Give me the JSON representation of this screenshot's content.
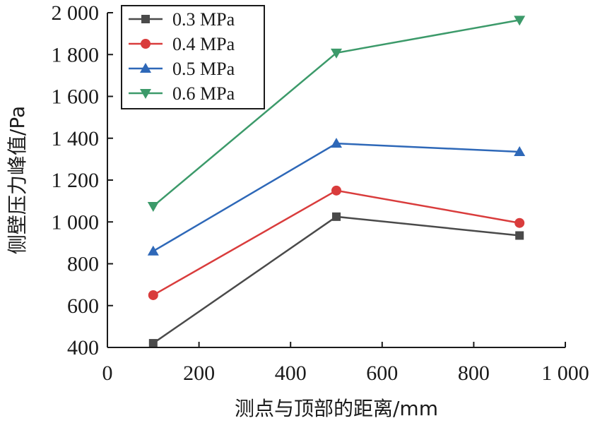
{
  "chart_data": {
    "type": "line",
    "xlabel": "测点与顶部的距离/mm",
    "ylabel": "侧壁压力峰值/Pa",
    "xlim": [
      0,
      1000
    ],
    "ylim": [
      400,
      2000
    ],
    "x_ticks": [
      0,
      200,
      400,
      600,
      800,
      1000
    ],
    "x_tick_labels": [
      "0",
      "200",
      "400",
      "600",
      "800",
      "1 000"
    ],
    "y_ticks": [
      400,
      600,
      800,
      1000,
      1200,
      1400,
      1600,
      1800,
      2000
    ],
    "y_tick_labels": [
      "400",
      "600",
      "800",
      "1 000",
      "1 200",
      "1 400",
      "1 600",
      "1 800",
      "2 000"
    ],
    "x": [
      100,
      500,
      900
    ],
    "grid": false,
    "legend_position": "top-left",
    "series": [
      {
        "name": "0.3 MPa",
        "color": "#4a4a4a",
        "marker": "square",
        "values": [
          420,
          1025,
          935
        ]
      },
      {
        "name": "0.4 MPa",
        "color": "#d93c3c",
        "marker": "circle",
        "values": [
          650,
          1150,
          995
        ]
      },
      {
        "name": "0.5 MPa",
        "color": "#2e68b8",
        "marker": "triangle-up",
        "values": [
          860,
          1375,
          1335
        ]
      },
      {
        "name": "0.6 MPa",
        "color": "#3c9a6a",
        "marker": "triangle-down",
        "values": [
          1075,
          1808,
          1965
        ]
      }
    ]
  }
}
